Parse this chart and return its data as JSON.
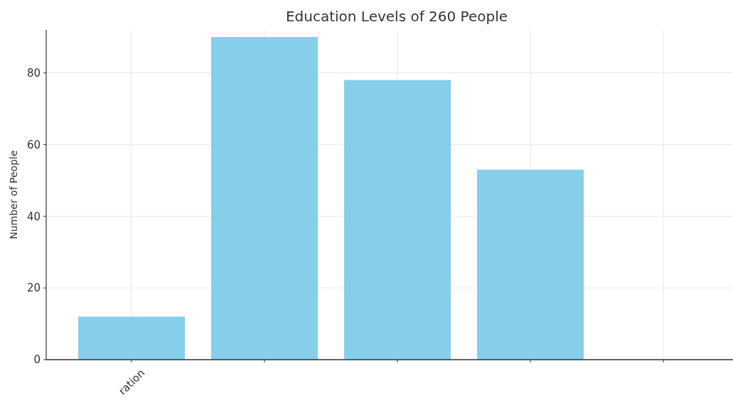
{
  "chart_data": {
    "type": "bar",
    "title": "Education Levels of 260 People",
    "ylabel": "Number of People",
    "categories": [
      "ration",
      null,
      null,
      null,
      null
    ],
    "values": [
      12,
      90,
      78,
      53,
      null
    ],
    "color": "#87ceeb",
    "ylim": [
      0,
      92
    ],
    "yticks": [
      0,
      20,
      40,
      60,
      80
    ],
    "grid": true
  }
}
